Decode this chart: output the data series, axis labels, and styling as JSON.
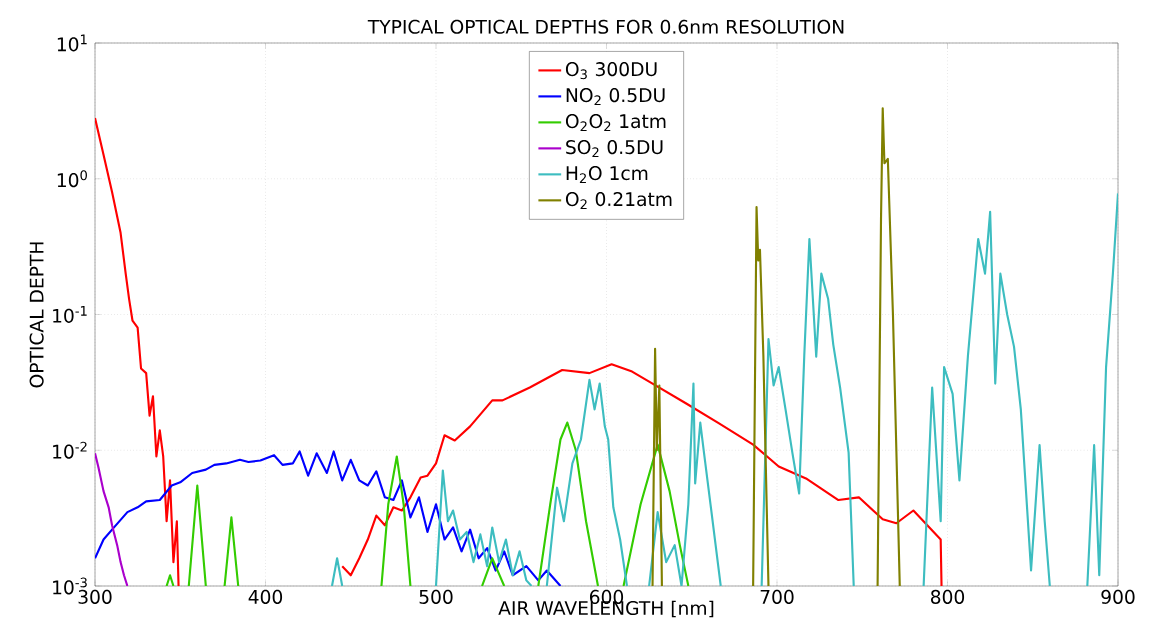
{
  "chart_data": {
    "type": "line",
    "title": "TYPICAL OPTICAL DEPTHS FOR 0.6nm RESOLUTION",
    "xlabel": "AIR WAVELENGTH [nm]",
    "ylabel": "OPTICAL DEPTH",
    "log": "y",
    "grid": true,
    "legend": "top",
    "line_style": "solid",
    "xlim": [
      300,
      900
    ],
    "xticks": [
      300,
      400,
      500,
      600,
      700,
      800,
      900
    ],
    "ylim": [
      0.001,
      10
    ],
    "yticks": [
      {
        "value": 0.001,
        "label": "10$^{-3}$"
      },
      {
        "value": 0.01,
        "label": "10$^{-2}$"
      },
      {
        "value": 0.1,
        "label": "10$^{-1}$"
      },
      {
        "value": 1,
        "label": "10$^{0}$"
      },
      {
        "value": 10,
        "label": "10$^{1}$"
      }
    ],
    "series": [
      {
        "name": "O$_{3}$ 300DU",
        "color": "#ff0000",
        "x": [
          300,
          305,
          310,
          315,
          318,
          320,
          322,
          325,
          327,
          330,
          332,
          334,
          336,
          338,
          340,
          342,
          344,
          346,
          348,
          349,
          440,
          445,
          450,
          455,
          460,
          465,
          470,
          475,
          480,
          485,
          491,
          495,
          500,
          505,
          511,
          520,
          533,
          539,
          555,
          574,
          590,
          603,
          615,
          627,
          647,
          666,
          686,
          701,
          717,
          736,
          748,
          762,
          770,
          780,
          796,
          796.5
        ],
        "values": [
          2.8,
          1.5,
          0.8,
          0.4,
          0.2,
          0.13,
          0.09,
          0.08,
          0.04,
          0.037,
          0.018,
          0.025,
          0.009,
          0.014,
          0.009,
          0.003,
          0.006,
          0.0015,
          0.003,
          0.001,
          null,
          0.0014,
          0.0012,
          0.0016,
          0.0022,
          0.0033,
          0.0028,
          0.0038,
          0.0036,
          0.0045,
          0.0063,
          0.0065,
          0.008,
          0.0129,
          0.0118,
          0.015,
          0.0233,
          0.0233,
          0.029,
          0.039,
          0.037,
          0.043,
          0.038,
          0.031,
          0.022,
          0.0158,
          0.011,
          0.0076,
          0.0062,
          0.0043,
          0.0045,
          0.0031,
          0.0029,
          0.0036,
          0.0022,
          0.001
        ]
      },
      {
        "name": "NO$_{2}$ 0.5DU",
        "color": "#0000ff",
        "x": [
          300,
          305,
          310,
          319,
          325,
          330,
          338,
          345,
          350,
          357,
          365,
          370,
          377,
          385,
          390,
          397,
          405,
          410,
          416,
          420,
          425,
          430,
          436,
          440,
          445,
          450,
          455,
          460,
          465,
          470,
          475,
          480,
          485,
          490,
          495,
          500,
          505,
          510,
          515,
          520,
          525,
          530,
          535,
          540,
          545,
          553,
          560,
          565,
          573
        ],
        "values": [
          0.0016,
          0.0022,
          0.0026,
          0.0035,
          0.0038,
          0.0042,
          0.0043,
          0.0055,
          0.0058,
          0.0068,
          0.0072,
          0.0078,
          0.008,
          0.0085,
          0.0082,
          0.0084,
          0.0092,
          0.0078,
          0.008,
          0.0098,
          0.0065,
          0.0095,
          0.0068,
          0.0098,
          0.006,
          0.0085,
          0.006,
          0.0055,
          0.007,
          0.0045,
          0.0043,
          0.006,
          0.0032,
          0.0045,
          0.0025,
          0.004,
          0.0022,
          0.0027,
          0.0018,
          0.0026,
          0.0016,
          0.0019,
          0.0013,
          0.0018,
          0.0012,
          0.0014,
          0.0011,
          0.0013,
          0.001
        ]
      },
      {
        "name": "O$_{2}$O$_{2}$ 1atm",
        "color": "#33cc00",
        "x": [
          342,
          344,
          346,
          null,
          355,
          360,
          365,
          null,
          376,
          380,
          384,
          null,
          468,
          472,
          477,
          481,
          485,
          null,
          527,
          533,
          540,
          null,
          560,
          567,
          573,
          577,
          582,
          588,
          595,
          null,
          610,
          620,
          630,
          637,
          643,
          648
        ],
        "values": [
          0.001,
          0.0012,
          0.001,
          null,
          0.001,
          0.0055,
          0.001,
          null,
          0.001,
          0.0032,
          0.001,
          null,
          0.001,
          0.004,
          0.009,
          0.004,
          0.001,
          null,
          0.001,
          0.0016,
          0.001,
          null,
          0.001,
          0.004,
          0.012,
          0.016,
          0.01,
          0.003,
          0.001,
          null,
          0.001,
          0.004,
          0.011,
          0.005,
          0.002,
          0.001
        ]
      },
      {
        "name": "SO$_{2}$ 0.5DU",
        "color": "#aa00cc",
        "x": [
          300,
          302,
          305,
          308,
          310,
          313,
          315,
          317,
          319
        ],
        "values": [
          0.0095,
          0.0075,
          0.005,
          0.0038,
          0.0028,
          0.002,
          0.0015,
          0.0012,
          0.001
        ]
      },
      {
        "name": "H$_{2}$O 1cm",
        "color": "#3dbdc0",
        "x": [
          439,
          442,
          445,
          null,
          500,
          504,
          507,
          510,
          514,
          518,
          522,
          526,
          530,
          533,
          537,
          541,
          545,
          549,
          553,
          556,
          null,
          565,
          571,
          575,
          580,
          585,
          590,
          593,
          596,
          599,
          601,
          604,
          608,
          612,
          null,
          625,
          630,
          635,
          640,
          644,
          648,
          651,
          652,
          655,
          657,
          661,
          664,
          667,
          null,
          691,
          695,
          698,
          701,
          705,
          709,
          713,
          716,
          719,
          723,
          726,
          730,
          733,
          737,
          742,
          745,
          null,
          786,
          791,
          796,
          798,
          803,
          807,
          812,
          818,
          822,
          825,
          828,
          831,
          835,
          839,
          843,
          849,
          854,
          857,
          860,
          null,
          882,
          886,
          889,
          893,
          897,
          900
        ],
        "values": [
          0.001,
          0.0016,
          0.001,
          null,
          0.001,
          0.0071,
          0.003,
          0.0036,
          0.0022,
          0.0025,
          0.0015,
          0.0024,
          0.0014,
          0.0027,
          0.0015,
          0.0022,
          0.0012,
          0.0018,
          0.0011,
          0.001,
          null,
          0.001,
          0.0053,
          0.003,
          0.008,
          0.012,
          0.033,
          0.02,
          0.031,
          0.015,
          0.012,
          0.0038,
          0.0022,
          0.001,
          null,
          0.001,
          0.0035,
          0.0015,
          0.002,
          0.001,
          0.004,
          0.031,
          0.0057,
          0.016,
          0.01,
          0.004,
          0.002,
          0.001,
          null,
          0.001,
          0.066,
          0.03,
          0.041,
          0.02,
          0.0096,
          0.0048,
          0.05,
          0.36,
          0.049,
          0.2,
          0.13,
          0.06,
          0.029,
          0.0096,
          0.001,
          null,
          0.001,
          0.029,
          0.003,
          0.041,
          0.026,
          0.006,
          0.05,
          0.36,
          0.2,
          0.57,
          0.031,
          0.2,
          0.1,
          0.058,
          0.02,
          0.0013,
          0.0109,
          0.003,
          0.001,
          null,
          0.001,
          0.0109,
          0.0012,
          0.041,
          0.2,
          0.78
        ]
      },
      {
        "name": "O$_{2}$ 0.21atm",
        "color": "#808000",
        "x": [
          627,
          628.5,
          629.5,
          631,
          632.5,
          null,
          686,
          688,
          689,
          690,
          692,
          695,
          null,
          759,
          761,
          762,
          763,
          765,
          768,
          772
        ],
        "values": [
          0.001,
          0.056,
          0.01,
          0.03,
          0.001,
          null,
          0.001,
          0.62,
          0.25,
          0.3,
          0.05,
          0.001,
          null,
          0.001,
          0.5,
          3.3,
          1.3,
          1.4,
          0.1,
          0.001
        ]
      }
    ]
  }
}
